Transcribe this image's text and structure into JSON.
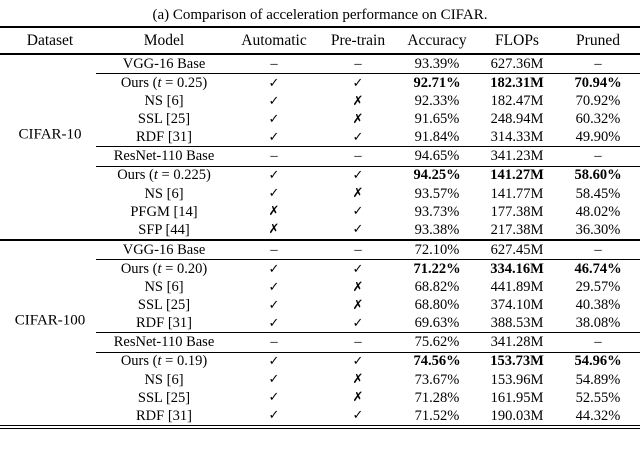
{
  "caption": "(a) Comparison of acceleration performance on CIFAR.",
  "columns": [
    "Dataset",
    "Model",
    "Automatic",
    "Pre-train",
    "Accuracy",
    "FLOPs",
    "Pruned"
  ],
  "symbols": {
    "check": "✓",
    "cross": "✗",
    "dash": "–"
  },
  "colors": {
    "text": "#000000",
    "background": "#ffffff",
    "rule": "#000000"
  },
  "sections": [
    {
      "dataset": "CIFAR-10",
      "groups": [
        {
          "base": {
            "model": "VGG-16 Base",
            "automatic": "–",
            "pretrain": "–",
            "accuracy": "93.39%",
            "flops": "627.36M",
            "pruned": "–",
            "highlight": false
          },
          "methods": [
            {
              "model": "Ours (t = 0.25)",
              "automatic": "✓",
              "pretrain": "✓",
              "accuracy": "92.71%",
              "flops": "182.31M",
              "pruned": "70.94%",
              "highlight": true
            },
            {
              "model": "NS [6]",
              "automatic": "✓",
              "pretrain": "✗",
              "accuracy": "92.33%",
              "flops": "182.47M",
              "pruned": "70.92%",
              "highlight": false
            },
            {
              "model": "SSL [25]",
              "automatic": "✓",
              "pretrain": "✗",
              "accuracy": "91.65%",
              "flops": "248.94M",
              "pruned": "60.32%",
              "highlight": false
            },
            {
              "model": "RDF [31]",
              "automatic": "✓",
              "pretrain": "✓",
              "accuracy": "91.84%",
              "flops": "314.33M",
              "pruned": "49.90%",
              "highlight": false
            }
          ]
        },
        {
          "base": {
            "model": "ResNet-110 Base",
            "automatic": "–",
            "pretrain": "–",
            "accuracy": "94.65%",
            "flops": "341.23M",
            "pruned": "–",
            "highlight": false
          },
          "methods": [
            {
              "model": "Ours (t = 0.225)",
              "automatic": "✓",
              "pretrain": "✓",
              "accuracy": "94.25%",
              "flops": "141.27M",
              "pruned": "58.60%",
              "highlight": true
            },
            {
              "model": "NS [6]",
              "automatic": "✓",
              "pretrain": "✗",
              "accuracy": "93.57%",
              "flops": "141.77M",
              "pruned": "58.45%",
              "highlight": false
            },
            {
              "model": "PFGM [14]",
              "automatic": "✗",
              "pretrain": "✓",
              "accuracy": "93.73%",
              "flops": "177.38M",
              "pruned": "48.02%",
              "highlight": false
            },
            {
              "model": "SFP [44]",
              "automatic": "✗",
              "pretrain": "✓",
              "accuracy": "93.38%",
              "flops": "217.38M",
              "pruned": "36.30%",
              "highlight": false
            }
          ]
        }
      ]
    },
    {
      "dataset": "CIFAR-100",
      "groups": [
        {
          "base": {
            "model": "VGG-16 Base",
            "automatic": "–",
            "pretrain": "–",
            "accuracy": "72.10%",
            "flops": "627.45M",
            "pruned": "–",
            "highlight": false
          },
          "methods": [
            {
              "model": "Ours (t = 0.20)",
              "automatic": "✓",
              "pretrain": "✓",
              "accuracy": "71.22%",
              "flops": "334.16M",
              "pruned": "46.74%",
              "highlight": true
            },
            {
              "model": "NS [6]",
              "automatic": "✓",
              "pretrain": "✗",
              "accuracy": "68.82%",
              "flops": "441.89M",
              "pruned": "29.57%",
              "highlight": false
            },
            {
              "model": "SSL [25]",
              "automatic": "✓",
              "pretrain": "✗",
              "accuracy": "68.80%",
              "flops": "374.10M",
              "pruned": "40.38%",
              "highlight": false
            },
            {
              "model": "RDF [31]",
              "automatic": "✓",
              "pretrain": "✓",
              "accuracy": "69.63%",
              "flops": "388.53M",
              "pruned": "38.08%",
              "highlight": false
            }
          ]
        },
        {
          "base": {
            "model": "ResNet-110 Base",
            "automatic": "–",
            "pretrain": "–",
            "accuracy": "75.62%",
            "flops": "341.28M",
            "pruned": "–",
            "highlight": false
          },
          "methods": [
            {
              "model": "Ours (t = 0.19)",
              "automatic": "✓",
              "pretrain": "✓",
              "accuracy": "74.56%",
              "flops": "153.73M",
              "pruned": "54.96%",
              "highlight": true
            },
            {
              "model": "NS [6]",
              "automatic": "✓",
              "pretrain": "✗",
              "accuracy": "73.67%",
              "flops": "153.96M",
              "pruned": "54.89%",
              "highlight": false
            },
            {
              "model": "SSL [25]",
              "automatic": "✓",
              "pretrain": "✗",
              "accuracy": "71.28%",
              "flops": "161.95M",
              "pruned": "52.55%",
              "highlight": false
            },
            {
              "model": "RDF [31]",
              "automatic": "✓",
              "pretrain": "✓",
              "accuracy": "71.52%",
              "flops": "190.03M",
              "pruned": "44.32%",
              "highlight": false
            }
          ]
        }
      ]
    }
  ]
}
